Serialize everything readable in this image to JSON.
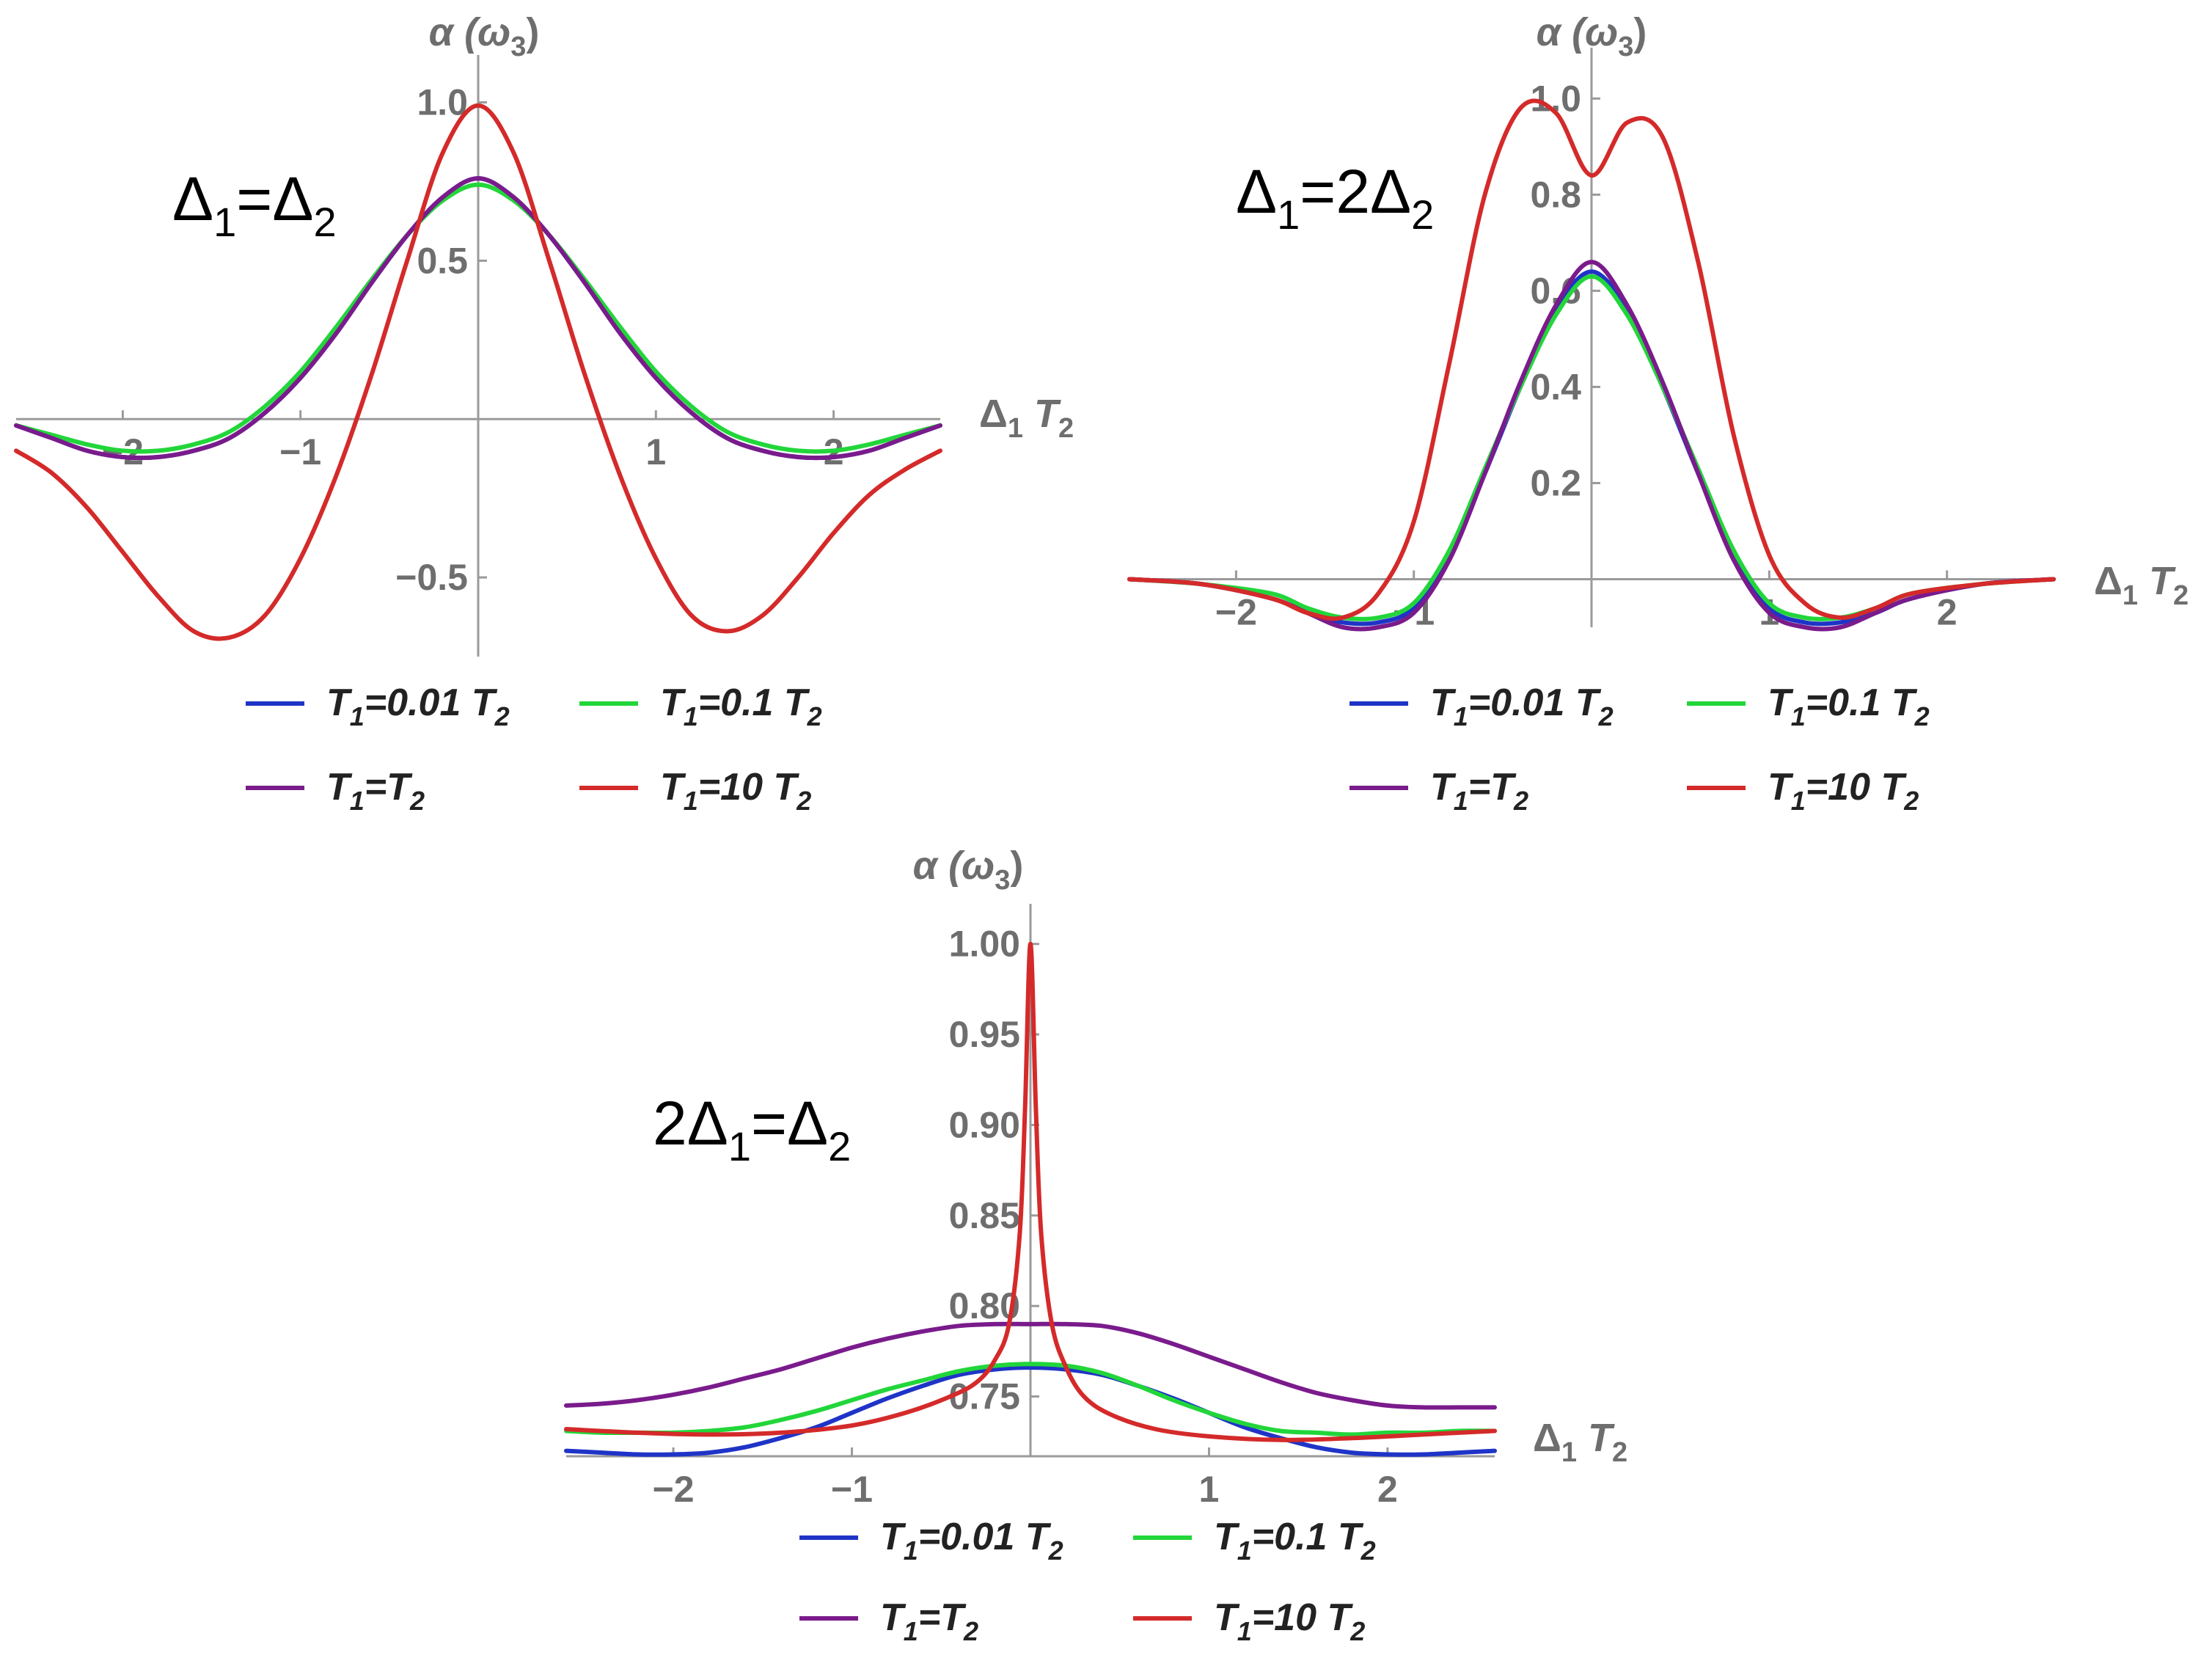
{
  "colors": {
    "blue": "#1f34c7",
    "green": "#22d63a",
    "purple": "#7a1b8c",
    "red": "#d42a2a",
    "axis": "#9a9a9a",
    "tick_text": "#6e6e6e"
  },
  "chart_data": [
    {
      "type": "line",
      "condition_label": "Δ1=Δ2",
      "ylabel": "α (ω3)",
      "xlabel": "Δ1 T2",
      "xlim": [
        -2.6,
        2.6
      ],
      "ylim": [
        -0.75,
        1.08
      ],
      "xticks": [
        -2,
        -1,
        1,
        2
      ],
      "yticks": [
        -0.5,
        0.5,
        1.0
      ],
      "ytick_labels": [
        "−0.5",
        "0.5",
        "1.0"
      ],
      "grid": false,
      "legend_position": "bottom",
      "series": [
        {
          "name": "T1=0.01 T2",
          "color": "#1f34c7",
          "x": [
            -2.6,
            -2.4,
            -2.2,
            -2.0,
            -1.8,
            -1.6,
            -1.4,
            -1.2,
            -1.0,
            -0.8,
            -0.6,
            -0.4,
            -0.2,
            0,
            0.2,
            0.4,
            0.6,
            0.8,
            1.0,
            1.2,
            1.4,
            1.6,
            1.8,
            2.0,
            2.2,
            2.4,
            2.6
          ],
          "y": [
            -0.02,
            -0.06,
            -0.1,
            -0.12,
            -0.12,
            -0.1,
            -0.06,
            0.02,
            0.13,
            0.27,
            0.43,
            0.58,
            0.7,
            0.76,
            0.7,
            0.58,
            0.43,
            0.27,
            0.13,
            0.02,
            -0.06,
            -0.1,
            -0.12,
            -0.12,
            -0.1,
            -0.06,
            -0.02
          ]
        },
        {
          "name": "T1=0.1 T2",
          "color": "#22d63a",
          "x": [
            -2.6,
            -2.4,
            -2.2,
            -2.0,
            -1.8,
            -1.6,
            -1.4,
            -1.2,
            -1.0,
            -0.8,
            -0.6,
            -0.4,
            -0.2,
            0,
            0.2,
            0.4,
            0.6,
            0.8,
            1.0,
            1.2,
            1.4,
            1.6,
            1.8,
            2.0,
            2.2,
            2.4,
            2.6
          ],
          "y": [
            -0.02,
            -0.05,
            -0.08,
            -0.1,
            -0.1,
            -0.08,
            -0.04,
            0.04,
            0.15,
            0.29,
            0.44,
            0.58,
            0.69,
            0.74,
            0.69,
            0.58,
            0.44,
            0.29,
            0.15,
            0.04,
            -0.04,
            -0.08,
            -0.1,
            -0.1,
            -0.08,
            -0.05,
            -0.02
          ]
        },
        {
          "name": "T1=T2",
          "color": "#7a1b8c",
          "x": [
            -2.6,
            -2.4,
            -2.2,
            -2.0,
            -1.8,
            -1.6,
            -1.4,
            -1.2,
            -1.0,
            -0.8,
            -0.6,
            -0.4,
            -0.2,
            0,
            0.2,
            0.4,
            0.6,
            0.8,
            1.0,
            1.2,
            1.4,
            1.6,
            1.8,
            2.0,
            2.2,
            2.4,
            2.6
          ],
          "y": [
            -0.02,
            -0.06,
            -0.1,
            -0.12,
            -0.12,
            -0.1,
            -0.06,
            0.02,
            0.13,
            0.27,
            0.43,
            0.58,
            0.7,
            0.76,
            0.7,
            0.58,
            0.43,
            0.27,
            0.13,
            0.02,
            -0.06,
            -0.1,
            -0.12,
            -0.12,
            -0.1,
            -0.06,
            -0.02
          ]
        },
        {
          "name": "T1=10 T2",
          "color": "#d42a2a",
          "x": [
            -2.6,
            -2.4,
            -2.2,
            -2.0,
            -1.8,
            -1.6,
            -1.4,
            -1.2,
            -1.0,
            -0.8,
            -0.6,
            -0.4,
            -0.2,
            0,
            0.2,
            0.4,
            0.6,
            0.8,
            1.0,
            1.2,
            1.4,
            1.6,
            1.8,
            2.0,
            2.2,
            2.4,
            2.6
          ],
          "y": [
            -0.1,
            -0.17,
            -0.28,
            -0.42,
            -0.56,
            -0.67,
            -0.69,
            -0.62,
            -0.44,
            -0.18,
            0.14,
            0.5,
            0.84,
            0.99,
            0.84,
            0.5,
            0.14,
            -0.18,
            -0.44,
            -0.62,
            -0.67,
            -0.62,
            -0.5,
            -0.36,
            -0.24,
            -0.16,
            -0.1
          ]
        }
      ]
    },
    {
      "type": "line",
      "condition_label": "Δ1=2Δ2",
      "ylabel": "α (ω3)",
      "xlabel": "Δ1 T2",
      "xlim": [
        -2.6,
        2.6
      ],
      "ylim": [
        -0.1,
        1.06
      ],
      "xticks": [
        -2,
        -1,
        1,
        2
      ],
      "yticks": [
        0.2,
        0.4,
        0.6,
        0.8,
        1.0
      ],
      "ytick_labels": [
        "0.2",
        "0.4",
        "0.6",
        "0.8",
        "1.0"
      ],
      "grid": false,
      "legend_position": "bottom",
      "series": [
        {
          "name": "T1=0.01 T2",
          "color": "#1f34c7",
          "x": [
            -2.6,
            -2.2,
            -1.8,
            -1.6,
            -1.4,
            -1.2,
            -1.0,
            -0.8,
            -0.6,
            -0.4,
            -0.2,
            0,
            0.2,
            0.4,
            0.6,
            0.8,
            1.0,
            1.2,
            1.4,
            1.6,
            1.8,
            2.2,
            2.6
          ],
          "y": [
            0,
            -0.01,
            -0.04,
            -0.07,
            -0.09,
            -0.09,
            -0.06,
            0.05,
            0.22,
            0.4,
            0.56,
            0.64,
            0.56,
            0.4,
            0.22,
            0.05,
            -0.06,
            -0.09,
            -0.09,
            -0.07,
            -0.04,
            -0.01,
            0
          ]
        },
        {
          "name": "T1=0.1 T2",
          "color": "#22d63a",
          "x": [
            -2.6,
            -2.2,
            -1.8,
            -1.6,
            -1.4,
            -1.2,
            -1.0,
            -0.8,
            -0.6,
            -0.4,
            -0.2,
            0,
            0.2,
            0.4,
            0.6,
            0.8,
            1.0,
            1.2,
            1.4,
            1.6,
            1.8,
            2.2,
            2.6
          ],
          "y": [
            0,
            -0.01,
            -0.03,
            -0.06,
            -0.08,
            -0.08,
            -0.05,
            0.06,
            0.23,
            0.4,
            0.55,
            0.63,
            0.55,
            0.4,
            0.23,
            0.06,
            -0.05,
            -0.08,
            -0.08,
            -0.06,
            -0.03,
            -0.01,
            0
          ]
        },
        {
          "name": "T1=T2",
          "color": "#7a1b8c",
          "x": [
            -2.6,
            -2.2,
            -1.8,
            -1.6,
            -1.4,
            -1.2,
            -1.0,
            -0.8,
            -0.6,
            -0.4,
            -0.2,
            0,
            0.2,
            0.4,
            0.6,
            0.8,
            1.0,
            1.2,
            1.4,
            1.6,
            1.8,
            2.2,
            2.6
          ],
          "y": [
            0,
            -0.01,
            -0.04,
            -0.07,
            -0.1,
            -0.1,
            -0.07,
            0.04,
            0.22,
            0.41,
            0.57,
            0.66,
            0.57,
            0.41,
            0.22,
            0.04,
            -0.07,
            -0.1,
            -0.1,
            -0.07,
            -0.04,
            -0.01,
            0
          ]
        },
        {
          "name": "T1=10 T2",
          "color": "#d42a2a",
          "x": [
            -2.6,
            -2.2,
            -1.8,
            -1.6,
            -1.4,
            -1.2,
            -1.0,
            -0.8,
            -0.6,
            -0.4,
            -0.2,
            0,
            0.2,
            0.4,
            0.6,
            0.8,
            1.0,
            1.2,
            1.4,
            1.6,
            1.8,
            2.2,
            2.6
          ],
          "y": [
            0,
            -0.01,
            -0.04,
            -0.07,
            -0.08,
            -0.03,
            0.12,
            0.45,
            0.8,
            0.98,
            0.97,
            0.84,
            0.95,
            0.92,
            0.66,
            0.3,
            0.05,
            -0.05,
            -0.08,
            -0.06,
            -0.03,
            -0.01,
            0
          ]
        }
      ]
    },
    {
      "type": "line",
      "condition_label": "2Δ1=Δ2",
      "ylabel": "α (ω3)",
      "xlabel": "Δ1 T2",
      "xlim": [
        -2.6,
        2.6
      ],
      "ylim": [
        0.717,
        1.01
      ],
      "xticks": [
        -2,
        -1,
        1,
        2
      ],
      "yticks": [
        0.75,
        0.8,
        0.85,
        0.9,
        0.95,
        1.0
      ],
      "ytick_labels": [
        "0.75",
        "0.80",
        "0.85",
        "0.90",
        "0.95",
        "1.00"
      ],
      "grid": false,
      "legend_position": "bottom",
      "series": [
        {
          "name": "T1=0.01 T2",
          "color": "#1f34c7",
          "x": [
            -2.6,
            -2.4,
            -2.2,
            -2.0,
            -1.8,
            -1.6,
            -1.4,
            -1.2,
            -1.0,
            -0.8,
            -0.6,
            -0.4,
            -0.2,
            0,
            0.2,
            0.4,
            0.6,
            0.8,
            1.0,
            1.2,
            1.4,
            1.6,
            1.8,
            2.0,
            2.2,
            2.4,
            2.6
          ],
          "y": [
            0.72,
            0.719,
            0.718,
            0.718,
            0.719,
            0.722,
            0.727,
            0.733,
            0.741,
            0.749,
            0.756,
            0.762,
            0.765,
            0.766,
            0.765,
            0.762,
            0.756,
            0.749,
            0.741,
            0.733,
            0.727,
            0.722,
            0.719,
            0.718,
            0.718,
            0.719,
            0.72
          ]
        },
        {
          "name": "T1=0.1 T2",
          "color": "#22d63a",
          "x": [
            -2.6,
            -2.4,
            -2.2,
            -2.0,
            -1.8,
            -1.6,
            -1.4,
            -1.2,
            -1.0,
            -0.8,
            -0.6,
            -0.4,
            -0.2,
            0,
            0.2,
            0.4,
            0.6,
            0.8,
            1.0,
            1.2,
            1.4,
            1.6,
            1.8,
            2.0,
            2.2,
            2.4,
            2.6
          ],
          "y": [
            0.731,
            0.73,
            0.73,
            0.73,
            0.731,
            0.733,
            0.737,
            0.742,
            0.748,
            0.754,
            0.759,
            0.764,
            0.767,
            0.768,
            0.767,
            0.763,
            0.756,
            0.748,
            0.741,
            0.735,
            0.731,
            0.73,
            0.729,
            0.73,
            0.73,
            0.731,
            0.731
          ]
        },
        {
          "name": "T1=T2",
          "color": "#7a1b8c",
          "x": [
            -2.6,
            -2.4,
            -2.2,
            -2.0,
            -1.8,
            -1.6,
            -1.4,
            -1.2,
            -1.0,
            -0.8,
            -0.6,
            -0.4,
            -0.2,
            0,
            0.2,
            0.4,
            0.6,
            0.8,
            1.0,
            1.2,
            1.4,
            1.6,
            1.8,
            2.0,
            2.2,
            2.4,
            2.6
          ],
          "y": [
            0.745,
            0.746,
            0.748,
            0.751,
            0.755,
            0.76,
            0.765,
            0.771,
            0.777,
            0.782,
            0.786,
            0.789,
            0.79,
            0.79,
            0.79,
            0.789,
            0.785,
            0.779,
            0.772,
            0.765,
            0.758,
            0.752,
            0.748,
            0.745,
            0.744,
            0.744,
            0.744
          ]
        },
        {
          "name": "T1=10 T2",
          "color": "#d42a2a",
          "x": [
            -2.6,
            -2.2,
            -1.8,
            -1.4,
            -1.0,
            -0.7,
            -0.45,
            -0.3,
            -0.2,
            -0.12,
            -0.06,
            -0.03,
            0,
            0.03,
            0.06,
            0.12,
            0.2,
            0.3,
            0.45,
            0.7,
            1.0,
            1.4,
            1.8,
            2.2,
            2.6
          ],
          "y": [
            0.732,
            0.73,
            0.729,
            0.73,
            0.734,
            0.741,
            0.75,
            0.758,
            0.77,
            0.79,
            0.84,
            0.91,
            1.0,
            0.91,
            0.84,
            0.79,
            0.766,
            0.75,
            0.74,
            0.732,
            0.728,
            0.726,
            0.727,
            0.729,
            0.731
          ]
        }
      ]
    }
  ]
}
